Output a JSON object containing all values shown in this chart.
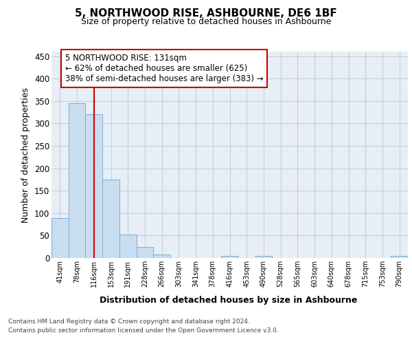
{
  "title": "5, NORTHWOOD RISE, ASHBOURNE, DE6 1BF",
  "subtitle": "Size of property relative to detached houses in Ashbourne",
  "xlabel": "Distribution of detached houses by size in Ashbourne",
  "ylabel": "Number of detached properties",
  "bar_color": "#c9ddf0",
  "bar_edge_color": "#7aafd4",
  "grid_color": "#c5ced8",
  "background_color": "#e8eef5",
  "bin_labels": [
    "41sqm",
    "78sqm",
    "116sqm",
    "153sqm",
    "191sqm",
    "228sqm",
    "266sqm",
    "303sqm",
    "341sqm",
    "378sqm",
    "416sqm",
    "453sqm",
    "490sqm",
    "528sqm",
    "565sqm",
    "603sqm",
    "640sqm",
    "678sqm",
    "715sqm",
    "753sqm",
    "790sqm"
  ],
  "bar_heights": [
    89,
    345,
    320,
    175,
    52,
    25,
    8,
    0,
    0,
    0,
    5,
    0,
    5,
    0,
    0,
    0,
    0,
    0,
    0,
    0,
    4
  ],
  "ylim": [
    0,
    460
  ],
  "yticks": [
    0,
    50,
    100,
    150,
    200,
    250,
    300,
    350,
    400,
    450
  ],
  "property_line_x": 2.0,
  "annotation_text": "5 NORTHWOOD RISE: 131sqm\n← 62% of detached houses are smaller (625)\n38% of semi-detached houses are larger (383) →",
  "annotation_box_color": "#ffffff",
  "annotation_box_edge": "#cc0000",
  "property_line_color": "#cc0000",
  "footer_line1": "Contains HM Land Registry data © Crown copyright and database right 2024.",
  "footer_line2": "Contains public sector information licensed under the Open Government Licence v3.0."
}
